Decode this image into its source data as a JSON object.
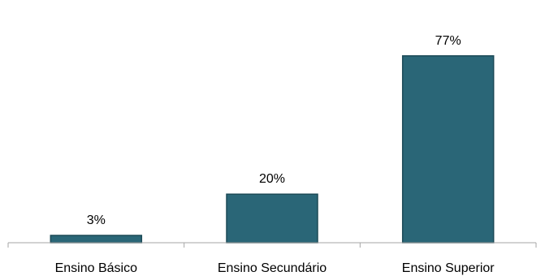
{
  "chart_data": {
    "type": "bar",
    "categories": [
      "Ensino Básico",
      "Ensino Secundário",
      "Ensino Superior"
    ],
    "values": [
      3,
      20,
      77
    ],
    "value_labels": [
      "3%",
      "20%",
      "77%"
    ],
    "unit": "%",
    "ylim": [
      0,
      100
    ],
    "grid": false,
    "legend": "none"
  },
  "colors": {
    "bar_fill": "#2a6677",
    "bar_edge": "#1c4a57",
    "axis": "#a6a6a6"
  }
}
